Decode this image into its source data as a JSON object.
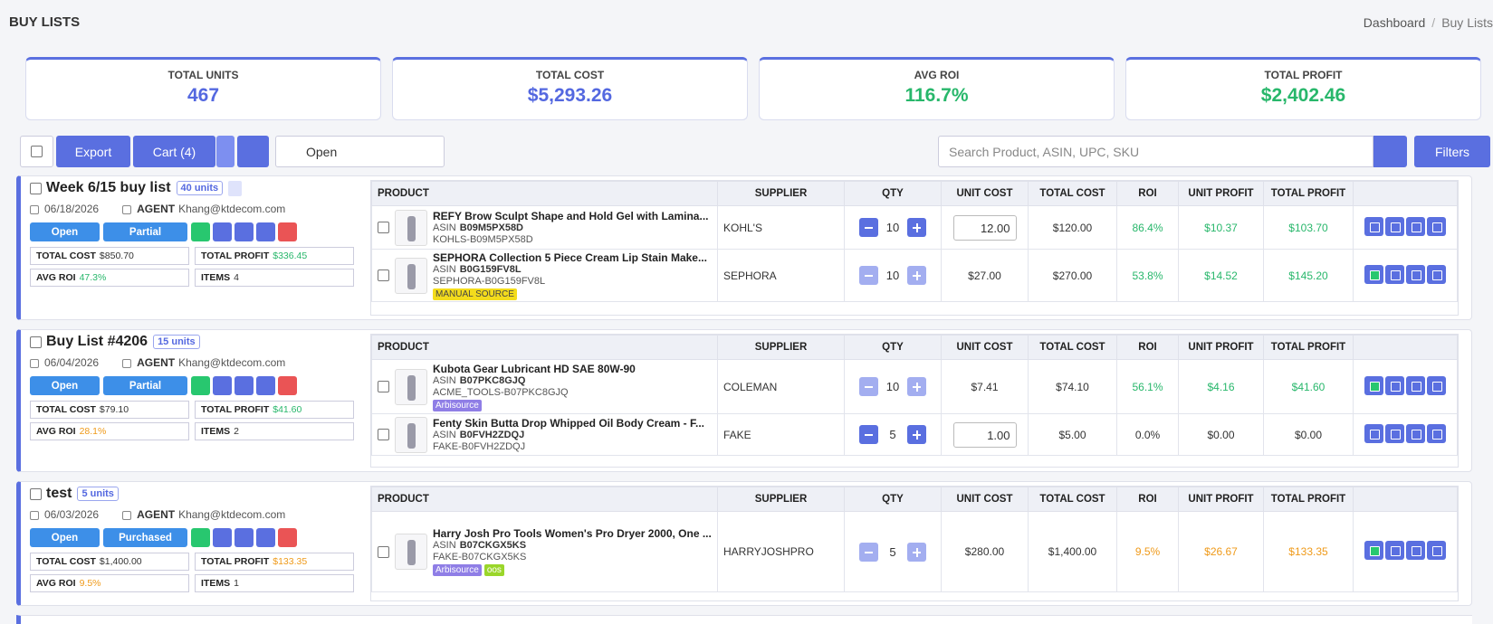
{
  "header": {
    "title": "BUY LISTS",
    "breadcrumb": [
      "Dashboard",
      "Buy Lists"
    ]
  },
  "stats": [
    {
      "label": "TOTAL UNITS",
      "value": "467",
      "tone": "blue"
    },
    {
      "label": "TOTAL COST",
      "value": "$5,293.26",
      "tone": "blue"
    },
    {
      "label": "AVG ROI",
      "value": "116.7%",
      "tone": "green"
    },
    {
      "label": "TOTAL PROFIT",
      "value": "$2,402.46",
      "tone": "green"
    }
  ],
  "toolbar": {
    "export": "Export",
    "cart": "Cart (4)",
    "status": "Open",
    "search_placeholder": "Search Product, ASIN, UPC, SKU",
    "filters": "Filters"
  },
  "labels": {
    "agent": "AGENT",
    "total_cost": "TOTAL COST",
    "total_profit": "TOTAL PROFIT",
    "avg_roi": "AVG ROI",
    "items": "ITEMS",
    "asin": "ASIN",
    "status": "Open"
  },
  "columns": [
    "PRODUCT",
    "SUPPLIER",
    "QTY",
    "UNIT COST",
    "TOTAL COST",
    "ROI",
    "UNIT PROFIT",
    "TOTAL PROFIT"
  ],
  "lists": [
    {
      "name": "Week 6/15 buy list",
      "units": "40 units",
      "has_doc": true,
      "date": "06/18/2026",
      "agent": "Khang@ktdecom.com",
      "fulfillment": "Partial",
      "total_cost": "$850.70",
      "total_profit": "$336.45",
      "profit_tone": "green",
      "avg_roi": "47.3%",
      "roi_tone": "green",
      "items_count": "4",
      "height": 160,
      "items": [
        {
          "name": "REFY Brow Sculpt Shape and Hold Gel with Lamina...",
          "asin": "B09M5PX58D",
          "sku": "KOHLS-B09M5PX58D",
          "tags": [],
          "supplier": "KOHL'S",
          "qty": "10",
          "unit_cost": "12.00",
          "total_cost": "$120.00",
          "roi": "86.4%",
          "unit_profit": "$10.37",
          "total_profit": "$103.70",
          "tone": "green",
          "editable": true
        },
        {
          "name": "SEPHORA Collection 5 Piece Cream Lip Stain Make...",
          "asin": "B0G159FV8L",
          "sku": "SEPHORA-B0G159FV8L",
          "tags": [
            {
              "text": "MANUAL SOURCE",
              "color": "yellow"
            }
          ],
          "supplier": "SEPHORA",
          "qty": "10",
          "unit_cost": "$27.00",
          "total_cost": "$270.00",
          "roi": "53.8%",
          "unit_profit": "$14.52",
          "total_profit": "$145.20",
          "tone": "green",
          "editable": false
        }
      ]
    },
    {
      "name": "Buy List #4206",
      "units": "15 units",
      "has_doc": false,
      "date": "06/04/2026",
      "agent": "Khang@ktdecom.com",
      "fulfillment": "Partial",
      "total_cost": "$79.10",
      "total_profit": "$41.60",
      "profit_tone": "green",
      "avg_roi": "28.1%",
      "roi_tone": "amber",
      "items_count": "2",
      "height": 158,
      "items": [
        {
          "name": "Kubota Gear Lubricant HD SAE 80W-90",
          "asin": "B07PKC8GJQ",
          "sku": "ACME_TOOLS-B07PKC8GJQ",
          "tags": [
            {
              "text": "Arbisource",
              "color": "purple"
            }
          ],
          "supplier": "COLEMAN",
          "qty": "10",
          "unit_cost": "$7.41",
          "total_cost": "$74.10",
          "roi": "56.1%",
          "unit_profit": "$4.16",
          "total_profit": "$41.60",
          "tone": "green",
          "editable": false
        },
        {
          "name": "Fenty Skin Butta Drop Whipped Oil Body Cream - F...",
          "asin": "B0FVH2ZDQJ",
          "sku": "FAKE-B0FVH2ZDQJ",
          "tags": [],
          "supplier": "FAKE",
          "qty": "5",
          "unit_cost": "1.00",
          "total_cost": "$5.00",
          "roi": "0.0%",
          "unit_profit": "$0.00",
          "total_profit": "$0.00",
          "tone": "plain",
          "editable": true
        }
      ]
    },
    {
      "name": "test",
      "units": "5 units",
      "has_doc": false,
      "date": "06/03/2026",
      "agent": "Khang@ktdecom.com",
      "fulfillment": "Purchased",
      "total_cost": "$1,400.00",
      "total_profit": "$133.35",
      "profit_tone": "amber",
      "avg_roi": "9.5%",
      "roi_tone": "amber",
      "items_count": "1",
      "height": 138,
      "items": [
        {
          "name": "Harry Josh Pro Tools Women's Pro Dryer 2000, One ...",
          "asin": "B07CKGX5KS",
          "sku": "FAKE-B07CKGX5KS",
          "tags": [
            {
              "text": "Arbisource",
              "color": "purple"
            },
            {
              "text": "oos",
              "color": "lime"
            }
          ],
          "supplier": "HARRYJOSHPRO",
          "qty": "5",
          "unit_cost": "$280.00",
          "total_cost": "$1,400.00",
          "roi": "9.5%",
          "unit_profit": "$26.67",
          "total_profit": "$133.35",
          "tone": "amber",
          "editable": false
        }
      ]
    }
  ]
}
